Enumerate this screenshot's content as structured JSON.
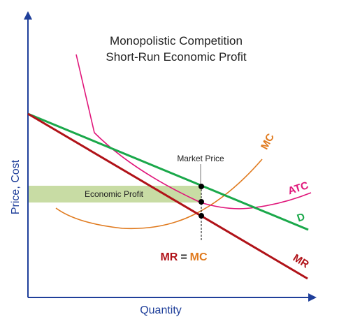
{
  "title": {
    "line1": "Monopolistic Competition",
    "line2": "Short-Run Economic Profit"
  },
  "axes": {
    "y_label": "Price, Cost",
    "x_label": "Quantity"
  },
  "annotations": {
    "market_price": "Market Price",
    "economic_profit": "Economic Profit"
  },
  "equilibrium_label": {
    "mr": "MR",
    "eq": "=",
    "mc": "MC"
  },
  "curves": {
    "mc": {
      "label": "MC",
      "color": "#e07a1e"
    },
    "atc": {
      "label": "ATC",
      "color": "#e0167a"
    },
    "d": {
      "label": "D",
      "color": "#1aa84a"
    },
    "mr": {
      "label": "MR",
      "color": "#b01218"
    }
  },
  "colors": {
    "axis": "#1f3f9a",
    "profit_area": "#c8dca4",
    "point": "#000000"
  }
}
